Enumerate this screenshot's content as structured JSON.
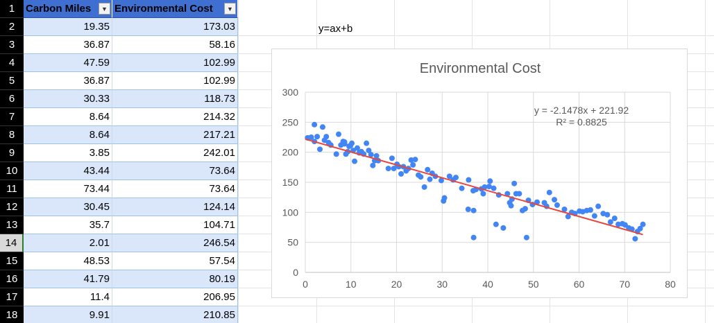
{
  "spreadsheet": {
    "headers": {
      "col_a": "Carbon Miles",
      "col_b": "Environmental Cost"
    },
    "filter_glyph": "▼",
    "header_row_number": "1",
    "selected_row": "14",
    "rows": [
      {
        "num": "2",
        "a": "19.35",
        "b": "173.03"
      },
      {
        "num": "3",
        "a": "36.87",
        "b": "58.16"
      },
      {
        "num": "4",
        "a": "47.59",
        "b": "102.99"
      },
      {
        "num": "5",
        "a": "36.87",
        "b": "102.99"
      },
      {
        "num": "6",
        "a": "30.33",
        "b": "118.73"
      },
      {
        "num": "7",
        "a": "8.64",
        "b": "214.32"
      },
      {
        "num": "8",
        "a": "8.64",
        "b": "217.21"
      },
      {
        "num": "9",
        "a": "3.85",
        "b": "242.01"
      },
      {
        "num": "10",
        "a": "43.44",
        "b": "73.64"
      },
      {
        "num": "11",
        "a": "73.44",
        "b": "73.64"
      },
      {
        "num": "12",
        "a": "30.45",
        "b": "124.14"
      },
      {
        "num": "13",
        "a": "35.7",
        "b": "104.71"
      },
      {
        "num": "14",
        "a": "2.01",
        "b": "246.54"
      },
      {
        "num": "15",
        "a": "48.53",
        "b": "57.54"
      },
      {
        "num": "16",
        "a": "41.79",
        "b": "80.19"
      },
      {
        "num": "17",
        "a": "11.4",
        "b": "206.95"
      },
      {
        "num": "18",
        "a": "9.91",
        "b": "210.85"
      }
    ]
  },
  "formula_note": "y=ax+b",
  "colors": {
    "header_fill": "#3f6fd1",
    "band_fill": "#dae7fb",
    "point": "#4285f4",
    "trendline": "#e8453c"
  },
  "chart_data": {
    "type": "scatter",
    "title": "Environmental Cost",
    "xlabel": "",
    "ylabel": "",
    "xlim": [
      0,
      80
    ],
    "ylim": [
      0,
      300
    ],
    "xticks": [
      0,
      10,
      20,
      30,
      40,
      50,
      60,
      70,
      80
    ],
    "yticks": [
      0,
      50,
      100,
      150,
      200,
      250,
      300
    ],
    "grid": true,
    "legend": "none",
    "trendline": {
      "slope": -2.1478,
      "intercept": 221.92,
      "x_range": [
        0,
        74
      ],
      "equation_label": "y = -2.1478x + 221.92",
      "r2_label": "R² = 0.8825"
    },
    "points": [
      [
        0.5,
        224
      ],
      [
        1.3,
        225
      ],
      [
        2.0,
        246
      ],
      [
        2.0,
        218
      ],
      [
        2.6,
        226
      ],
      [
        3.2,
        205
      ],
      [
        3.8,
        242
      ],
      [
        4.2,
        220
      ],
      [
        4.6,
        226
      ],
      [
        5.1,
        216
      ],
      [
        5.6,
        212
      ],
      [
        6.8,
        197
      ],
      [
        7.3,
        230
      ],
      [
        7.8,
        212
      ],
      [
        8.3,
        218
      ],
      [
        8.6,
        214
      ],
      [
        8.6,
        217
      ],
      [
        8.9,
        197
      ],
      [
        9.3,
        201
      ],
      [
        9.6,
        210
      ],
      [
        9.9,
        211
      ],
      [
        10.2,
        215
      ],
      [
        10.5,
        203
      ],
      [
        10.8,
        185
      ],
      [
        11.4,
        207
      ],
      [
        11.8,
        199
      ],
      [
        12.3,
        201
      ],
      [
        12.8,
        197
      ],
      [
        13.4,
        215
      ],
      [
        13.9,
        203
      ],
      [
        14.4,
        196
      ],
      [
        14.8,
        178
      ],
      [
        15.2,
        186
      ],
      [
        15.6,
        194
      ],
      [
        16.0,
        186
      ],
      [
        18.2,
        173
      ],
      [
        19.0,
        190
      ],
      [
        19.4,
        173
      ],
      [
        20.1,
        180
      ],
      [
        20.5,
        176
      ],
      [
        21.0,
        164
      ],
      [
        21.5,
        176
      ],
      [
        22.1,
        169
      ],
      [
        22.6,
        173
      ],
      [
        23.2,
        187
      ],
      [
        23.6,
        179
      ],
      [
        24.1,
        188
      ],
      [
        24.8,
        162
      ],
      [
        25.3,
        159
      ],
      [
        26.1,
        142
      ],
      [
        26.8,
        171
      ],
      [
        27.3,
        155
      ],
      [
        27.8,
        165
      ],
      [
        28.5,
        160
      ],
      [
        29.8,
        153
      ],
      [
        30.3,
        119
      ],
      [
        30.5,
        124
      ],
      [
        31.6,
        160
      ],
      [
        32.4,
        154
      ],
      [
        33.0,
        158
      ],
      [
        34.3,
        140
      ],
      [
        35.7,
        105
      ],
      [
        35.8,
        154
      ],
      [
        36.8,
        136
      ],
      [
        36.9,
        103
      ],
      [
        36.9,
        58
      ],
      [
        37.4,
        138
      ],
      [
        38.6,
        139
      ],
      [
        39.0,
        131
      ],
      [
        39.3,
        142
      ],
      [
        40.3,
        143
      ],
      [
        40.5,
        152
      ],
      [
        41.3,
        140
      ],
      [
        41.8,
        80
      ],
      [
        42.4,
        129
      ],
      [
        43.4,
        74
      ],
      [
        44.3,
        131
      ],
      [
        44.8,
        116
      ],
      [
        45.1,
        111
      ],
      [
        45.3,
        122
      ],
      [
        45.8,
        148
      ],
      [
        46.2,
        131
      ],
      [
        46.9,
        131
      ],
      [
        47.6,
        103
      ],
      [
        48.2,
        106
      ],
      [
        48.5,
        58
      ],
      [
        48.9,
        120
      ],
      [
        49.8,
        113
      ],
      [
        50.8,
        117
      ],
      [
        52.4,
        116
      ],
      [
        52.9,
        110
      ],
      [
        53.5,
        133
      ],
      [
        54.6,
        121
      ],
      [
        55.2,
        112
      ],
      [
        56.8,
        105
      ],
      [
        57.6,
        93
      ],
      [
        58.4,
        100
      ],
      [
        59.1,
        98
      ],
      [
        60.1,
        102
      ],
      [
        60.8,
        101
      ],
      [
        61.7,
        103
      ],
      [
        62.5,
        104
      ],
      [
        63.4,
        94
      ],
      [
        64.2,
        110
      ],
      [
        65.3,
        98
      ],
      [
        66.2,
        96
      ],
      [
        66.9,
        84
      ],
      [
        67.8,
        90
      ],
      [
        68.6,
        80
      ],
      [
        69.5,
        81
      ],
      [
        70.1,
        79
      ],
      [
        70.9,
        74
      ],
      [
        71.6,
        72
      ],
      [
        72.3,
        56
      ],
      [
        72.8,
        68
      ],
      [
        73.4,
        73
      ],
      [
        74.0,
        80
      ]
    ]
  }
}
